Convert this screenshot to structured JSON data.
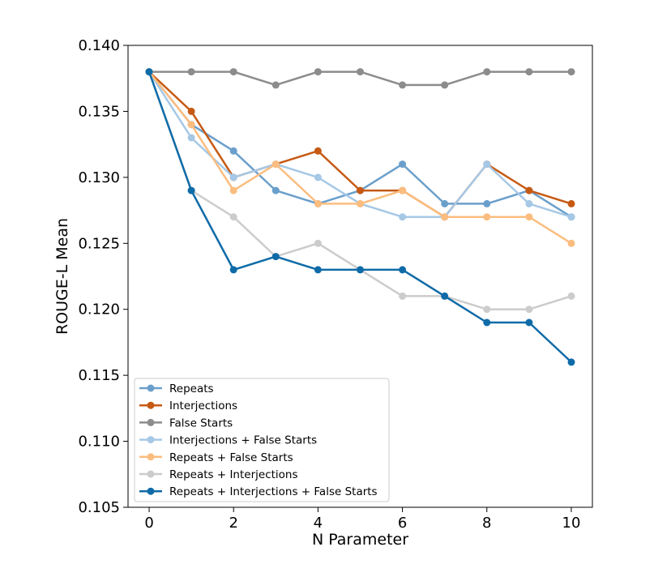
{
  "chart_data": {
    "type": "line",
    "title": "",
    "xlabel": "N Parameter",
    "ylabel": "ROUGE-L Mean",
    "xlim": [
      -0.5,
      10.5
    ],
    "ylim": [
      0.105,
      0.14
    ],
    "xticks": [
      0,
      2,
      4,
      6,
      8,
      10
    ],
    "yticks": [
      0.105,
      0.11,
      0.115,
      0.12,
      0.125,
      0.13,
      0.135,
      0.14
    ],
    "ytick_labels": [
      "0.105",
      "0.110",
      "0.115",
      "0.120",
      "0.125",
      "0.130",
      "0.135",
      "0.140"
    ],
    "grid": false,
    "legend_position": "lower-left",
    "x": [
      0,
      1,
      2,
      3,
      4,
      5,
      6,
      7,
      8,
      9,
      10
    ],
    "series": [
      {
        "name": "Repeats",
        "color": "#6a9fcb",
        "values": [
          0.138,
          0.134,
          0.132,
          0.129,
          0.128,
          0.129,
          0.131,
          0.128,
          0.128,
          0.129,
          0.127
        ]
      },
      {
        "name": "Interjections",
        "color": "#c65a14",
        "values": [
          0.138,
          0.135,
          0.13,
          0.131,
          0.132,
          0.129,
          0.129,
          0.127,
          0.131,
          0.129,
          0.128
        ]
      },
      {
        "name": "False Starts",
        "color": "#8c8c8c",
        "values": [
          0.138,
          0.138,
          0.138,
          0.137,
          0.138,
          0.138,
          0.137,
          0.137,
          0.138,
          0.138,
          0.138
        ]
      },
      {
        "name": "Interjections + False Starts",
        "color": "#a6c8e6",
        "values": [
          0.138,
          0.133,
          0.13,
          0.131,
          0.13,
          0.128,
          0.127,
          0.127,
          0.131,
          0.128,
          0.127
        ]
      },
      {
        "name": "Repeats + False Starts",
        "color": "#fbbd7f",
        "values": [
          0.138,
          0.134,
          0.129,
          0.131,
          0.128,
          0.128,
          0.129,
          0.127,
          0.127,
          0.127,
          0.125
        ]
      },
      {
        "name": "Repeats + Interjections",
        "color": "#cccccc",
        "values": [
          0.138,
          0.129,
          0.127,
          0.124,
          0.125,
          0.123,
          0.121,
          0.121,
          0.12,
          0.12,
          0.121
        ]
      },
      {
        "name": "Repeats + Interjections + False Starts",
        "color": "#0f6ba8",
        "values": [
          0.138,
          0.129,
          0.123,
          0.124,
          0.123,
          0.123,
          0.123,
          0.121,
          0.119,
          0.119,
          0.116
        ]
      }
    ]
  }
}
